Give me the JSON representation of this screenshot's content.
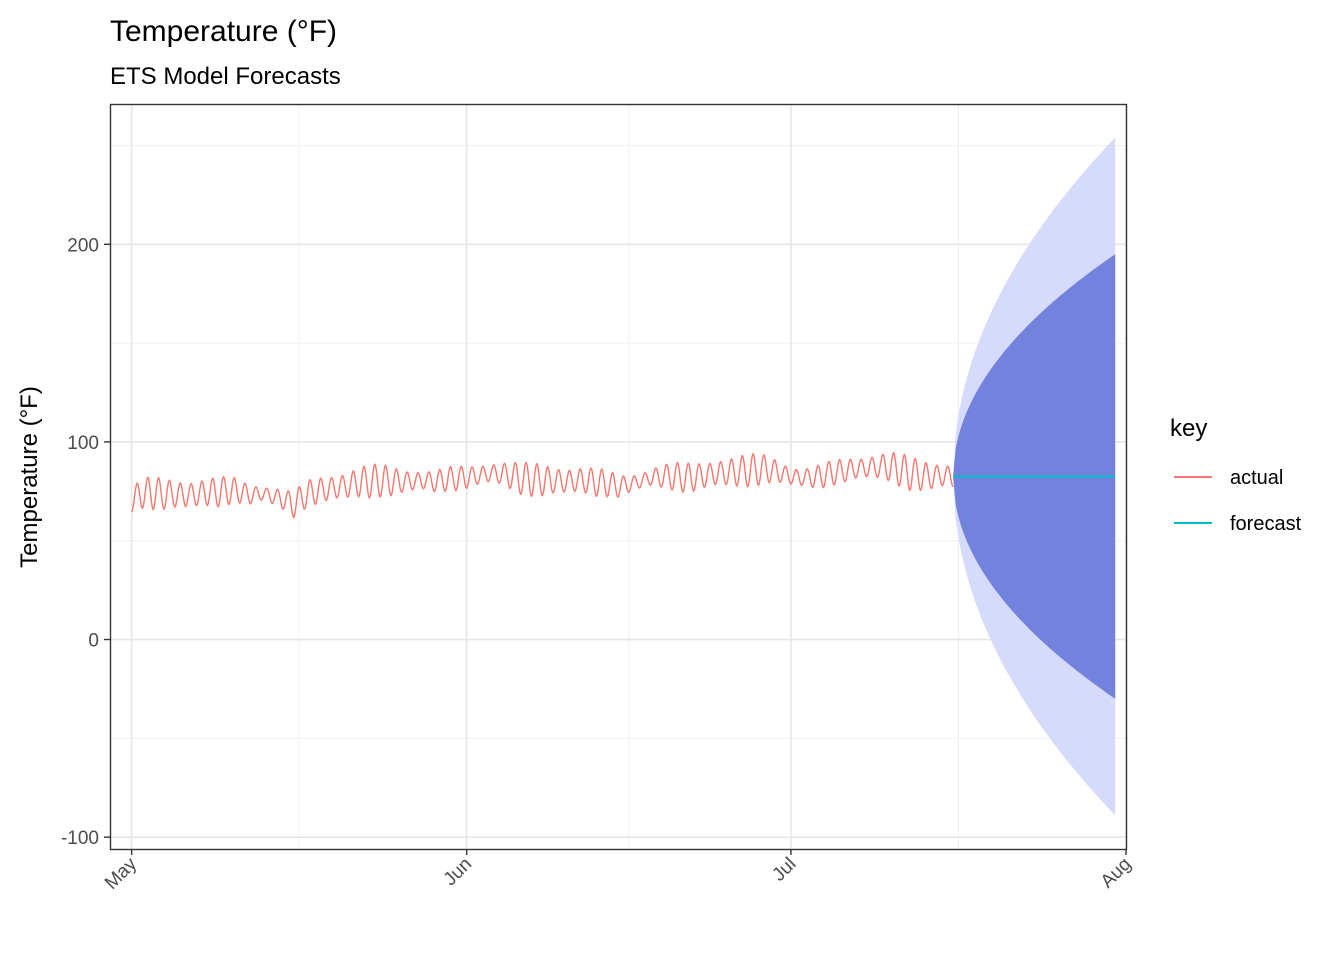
{
  "chart_data": {
    "type": "line",
    "title": "Temperature (°F)",
    "subtitle": "ETS Model Forecasts",
    "xlabel": "",
    "ylabel": "Temperature (°F)",
    "x_axis": {
      "type": "date",
      "range": [
        "2018-04-29",
        "2018-08-01"
      ],
      "ticks": [
        {
          "date": "2018-05-01",
          "label": "May"
        },
        {
          "date": "2018-06-01",
          "label": "Jun"
        },
        {
          "date": "2018-07-01",
          "label": "Jul"
        },
        {
          "date": "2018-08-01",
          "label": "Aug"
        }
      ]
    },
    "y_axis": {
      "range": [
        -106,
        271
      ],
      "ticks": [
        -100,
        0,
        100,
        200
      ]
    },
    "grid": true,
    "legend": {
      "title": "key",
      "position": "right",
      "entries": [
        {
          "label": "actual",
          "color": "#f8766d"
        },
        {
          "label": "forecast",
          "color": "#00bfc4"
        }
      ]
    },
    "series": [
      {
        "name": "actual",
        "color": "#f8766d",
        "points": [
          [
            "2018-05-01",
            70.5
          ],
          [
            "2018-05-02",
            74.0
          ],
          [
            "2018-05-03",
            74.0
          ],
          [
            "2018-05-04",
            73.5
          ],
          [
            "2018-05-05",
            73.5
          ],
          [
            "2018-05-06",
            73.0
          ],
          [
            "2018-05-07",
            73.5
          ],
          [
            "2018-05-08",
            74.5
          ],
          [
            "2018-05-09",
            74.5
          ],
          [
            "2018-05-10",
            75.5
          ],
          [
            "2018-05-11",
            75.0
          ],
          [
            "2018-05-12",
            73.0
          ],
          [
            "2018-05-13",
            74.0
          ],
          [
            "2018-05-14",
            72.5
          ],
          [
            "2018-05-15",
            71.0
          ],
          [
            "2018-05-16",
            68.0
          ],
          [
            "2018-05-17",
            73.0
          ],
          [
            "2018-05-18",
            75.0
          ],
          [
            "2018-05-19",
            76.0
          ],
          [
            "2018-05-20",
            77.0
          ],
          [
            "2018-05-21",
            78.0
          ],
          [
            "2018-05-22",
            79.5
          ],
          [
            "2018-05-23",
            80.0
          ],
          [
            "2018-05-24",
            80.5
          ],
          [
            "2018-05-25",
            80.0
          ],
          [
            "2018-05-26",
            80.0
          ],
          [
            "2018-05-27",
            80.0
          ],
          [
            "2018-05-28",
            80.5
          ],
          [
            "2018-05-29",
            80.0
          ],
          [
            "2018-05-30",
            81.0
          ],
          [
            "2018-05-31",
            81.5
          ],
          [
            "2018-06-01",
            82.0
          ],
          [
            "2018-06-02",
            83.0
          ],
          [
            "2018-06-03",
            84.0
          ],
          [
            "2018-06-04",
            84.0
          ],
          [
            "2018-06-05",
            83.0
          ],
          [
            "2018-06-06",
            81.5
          ],
          [
            "2018-06-07",
            81.0
          ],
          [
            "2018-06-08",
            80.5
          ],
          [
            "2018-06-09",
            80.5
          ],
          [
            "2018-06-10",
            80.0
          ],
          [
            "2018-06-11",
            80.5
          ],
          [
            "2018-06-12",
            80.5
          ],
          [
            "2018-06-13",
            79.5
          ],
          [
            "2018-06-14",
            79.0
          ],
          [
            "2018-06-15",
            77.5
          ],
          [
            "2018-06-16",
            78.5
          ],
          [
            "2018-06-17",
            80.0
          ],
          [
            "2018-06-18",
            82.0
          ],
          [
            "2018-06-19",
            82.5
          ],
          [
            "2018-06-20",
            82.5
          ],
          [
            "2018-06-21",
            82.0
          ],
          [
            "2018-06-22",
            82.0
          ],
          [
            "2018-06-23",
            83.0
          ],
          [
            "2018-06-24",
            84.0
          ],
          [
            "2018-06-25",
            84.5
          ],
          [
            "2018-06-26",
            85.0
          ],
          [
            "2018-06-27",
            85.5
          ],
          [
            "2018-06-28",
            86.0
          ],
          [
            "2018-06-29",
            86.0
          ],
          [
            "2018-06-30",
            84.5
          ],
          [
            "2018-07-01",
            82.5
          ],
          [
            "2018-07-02",
            82.0
          ],
          [
            "2018-07-03",
            82.0
          ],
          [
            "2018-07-04",
            83.0
          ],
          [
            "2018-07-05",
            84.5
          ],
          [
            "2018-07-06",
            85.5
          ],
          [
            "2018-07-07",
            86.5
          ],
          [
            "2018-07-08",
            87.0
          ],
          [
            "2018-07-09",
            87.5
          ],
          [
            "2018-07-10",
            87.5
          ],
          [
            "2018-07-11",
            86.0
          ],
          [
            "2018-07-12",
            84.0
          ],
          [
            "2018-07-13",
            83.0
          ],
          [
            "2018-07-14",
            82.5
          ],
          [
            "2018-07-15",
            83.0
          ],
          [
            "2018-07-16",
            82.5
          ]
        ]
      },
      {
        "name": "forecast",
        "color": "#00bfc4",
        "points": [
          [
            "2018-07-16",
            82.5
          ],
          [
            "2018-07-31",
            82.5
          ]
        ],
        "intervals": [
          {
            "level": 80,
            "fill": "#7282dd",
            "lower_end": -30,
            "upper_end": 195
          },
          {
            "level": 95,
            "fill": "#d6dbfc",
            "lower_end": -89,
            "upper_end": 254
          }
        ]
      }
    ]
  }
}
